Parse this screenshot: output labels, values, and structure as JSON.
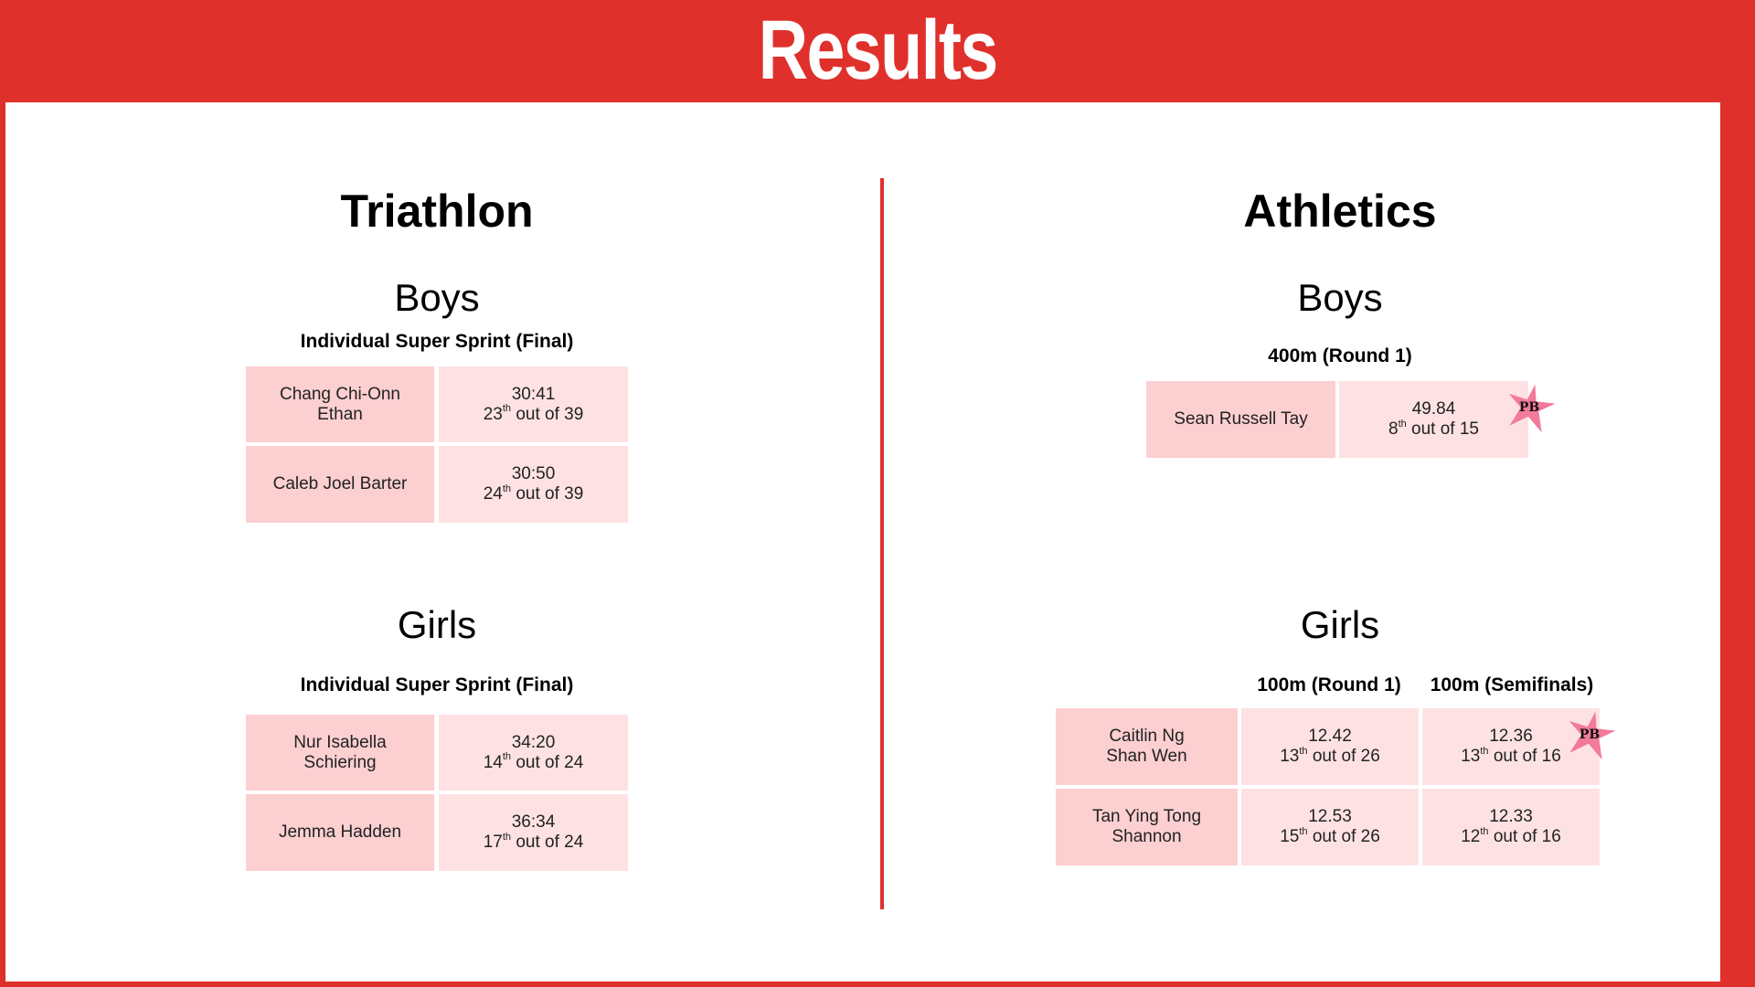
{
  "title": "Results",
  "triathlon": {
    "heading": "Triathlon",
    "boys": {
      "heading": "Boys",
      "event": "Individual Super Sprint (Final)",
      "rows": [
        {
          "name_line1": "Chang Chi-Onn",
          "name_line2": "Ethan",
          "time": "30:41",
          "place": "23",
          "suffix": "th",
          "of": "out of 39"
        },
        {
          "name_line1": "Caleb Joel Barter",
          "name_line2": "",
          "time": "30:50",
          "place": "24",
          "suffix": "th",
          "of": "out of 39"
        }
      ]
    },
    "girls": {
      "heading": "Girls",
      "event": "Individual Super Sprint (Final)",
      "rows": [
        {
          "name_line1": "Nur Isabella",
          "name_line2": "Schiering",
          "time": "34:20",
          "place": "14",
          "suffix": "th",
          "of": "out of 24"
        },
        {
          "name_line1": "Jemma Hadden",
          "name_line2": "",
          "time": "36:34",
          "place": "17",
          "suffix": "th",
          "of": "out of 24"
        }
      ]
    }
  },
  "athletics": {
    "heading": "Athletics",
    "boys": {
      "heading": "Boys",
      "event": "400m (Round 1)",
      "rows": [
        {
          "name": "Sean Russell Tay",
          "time": "49.84",
          "place": "8",
          "suffix": "th",
          "of": "out of 15",
          "badge": "PB"
        }
      ]
    },
    "girls": {
      "heading": "Girls",
      "event1": "100m (Round 1)",
      "event2": "100m (Semifinals)",
      "rows": [
        {
          "name_line1": "Caitlin Ng",
          "name_line2": "Shan Wen",
          "r1_time": "12.42",
          "r1_place": "13",
          "r1_suffix": "th",
          "r1_of": "out of 26",
          "sf_time": "12.36",
          "sf_place": "13",
          "sf_suffix": "th",
          "sf_of": "out of 16",
          "badge": "PB"
        },
        {
          "name_line1": "Tan Ying Tong",
          "name_line2": "Shannon",
          "r1_time": "12.53",
          "r1_place": "15",
          "r1_suffix": "th",
          "r1_of": "out of 26",
          "sf_time": "12.33",
          "sf_place": "12",
          "sf_suffix": "th",
          "sf_of": "out of 16"
        }
      ]
    }
  },
  "colors": {
    "accent": "#e0302c",
    "name_cell": "#fccfd1",
    "result_cell": "#fee2e3",
    "badge": "#f27a9a"
  },
  "icons": {
    "badge_shape": "star-icon"
  }
}
